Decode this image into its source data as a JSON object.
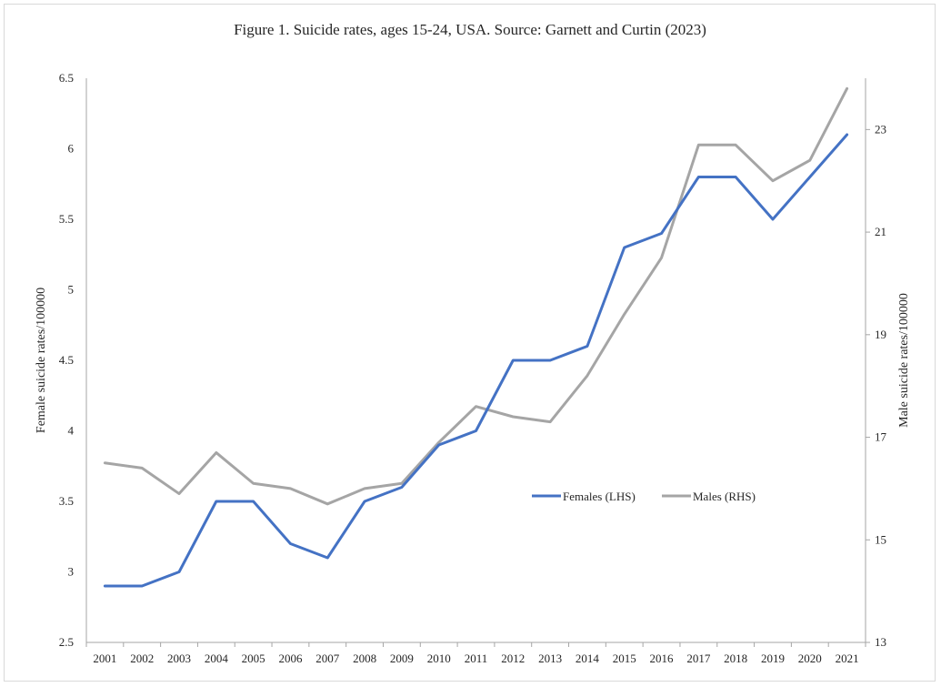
{
  "chart_data": {
    "type": "line",
    "title": "Figure 1.  Suicide rates,  ages 15-24, USA.  Source: Garnett and Curtin (2023)",
    "categories": [
      "2001",
      "2002",
      "2003",
      "2004",
      "2005",
      "2006",
      "2007",
      "2008",
      "2009",
      "2010",
      "2011",
      "2012",
      "2013",
      "2014",
      "2015",
      "2016",
      "2017",
      "2018",
      "2019",
      "2020",
      "2021"
    ],
    "ylabel_left": "Female suicide rates/100000",
    "ylabel_right": "Male suicide rates/100000",
    "ylim_left": [
      2.5,
      6.5
    ],
    "ylim_right": [
      13,
      24
    ],
    "yticks_left": [
      "2.5",
      "3",
      "3.5",
      "4",
      "4.5",
      "5",
      "5.5",
      "6",
      "6.5"
    ],
    "yticks_right": [
      "13",
      "15",
      "17",
      "19",
      "21",
      "23"
    ],
    "legend_position": "center-right",
    "grid": false,
    "series": [
      {
        "name": "Females (LHS)",
        "axis": "left",
        "color": "#4472c4",
        "values": [
          2.9,
          2.9,
          3.0,
          3.5,
          3.5,
          3.2,
          3.1,
          3.5,
          3.6,
          3.9,
          4.0,
          4.5,
          4.5,
          4.6,
          5.3,
          5.4,
          5.8,
          5.8,
          5.5,
          5.8,
          6.1
        ]
      },
      {
        "name": "Males (RHS)",
        "axis": "right",
        "color": "#a5a5a5",
        "values": [
          16.5,
          16.4,
          15.9,
          16.7,
          16.1,
          16.0,
          15.7,
          16.0,
          16.1,
          16.9,
          17.6,
          17.4,
          17.3,
          18.2,
          19.4,
          20.5,
          22.7,
          22.7,
          22.0,
          22.4,
          23.8
        ]
      }
    ]
  }
}
